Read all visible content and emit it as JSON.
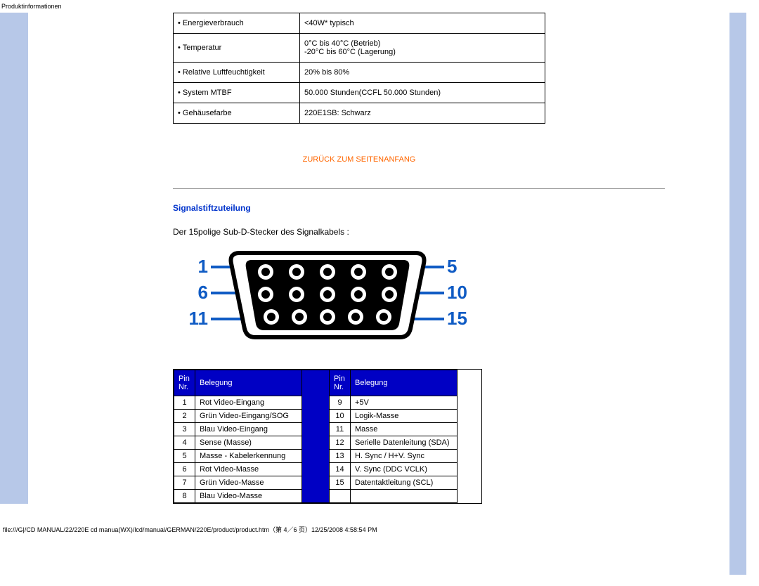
{
  "page": {
    "header_label": "Produktinformationen",
    "footer_path": "file:///G|/CD MANUAL/22/220E cd manua(WX)/lcd/manual/GERMAN/220E/product/product.htm（第 4／6 页）12/25/2008 4:58:54 PM"
  },
  "spec_table": {
    "rows": [
      {
        "label": "• Energieverbrauch",
        "value": "<40W* typisch"
      },
      {
        "label": "• Temperatur",
        "value": "0°C bis 40°C (Betrieb)\n-20°C bis 60°C (Lagerung)"
      },
      {
        "label": "• Relative Luftfeuchtigkeit",
        "value": "20% bis 80%"
      },
      {
        "label": "• System MTBF",
        "value": "50.000 Stunden(CCFL 50.000 Stunden)"
      },
      {
        "label": "• Gehäusefarbe",
        "value": "220E1SB: Schwarz"
      }
    ]
  },
  "back_link": "ZURÜCK ZUM SEITENANFANG",
  "section": {
    "heading": "Signalstiftzuteilung",
    "desc": "Der 15polige Sub-D-Stecker des Signalkabels :"
  },
  "connector": {
    "labels": {
      "l1": "1",
      "l2": "6",
      "l3": "11",
      "r1": "5",
      "r2": "10",
      "r3": "15"
    },
    "label_color": "#0f5bc4",
    "body_fill": "#000000",
    "dot_fill": "#000000",
    "border": "#000000"
  },
  "pin_table": {
    "headers": {
      "pin": "Pin Nr.",
      "assign": "Belegung"
    },
    "header_bg": "#0000c4",
    "header_fg": "#ffffff",
    "left": [
      {
        "n": "1",
        "a": "Rot Video-Eingang"
      },
      {
        "n": "2",
        "a": "Grün Video-Eingang/SOG"
      },
      {
        "n": "3",
        "a": "Blau Video-Eingang"
      },
      {
        "n": "4",
        "a": "Sense (Masse)"
      },
      {
        "n": "5",
        "a": "Masse - Kabelerkennung"
      },
      {
        "n": "6",
        "a": "Rot Video-Masse"
      },
      {
        "n": "7",
        "a": "Grün Video-Masse"
      },
      {
        "n": "8",
        "a": "Blau Video-Masse"
      }
    ],
    "right": [
      {
        "n": "9",
        "a": "+5V"
      },
      {
        "n": "10",
        "a": "Logik-Masse"
      },
      {
        "n": "11",
        "a": "Masse"
      },
      {
        "n": "12",
        "a": "Serielle Datenleitung (SDA)"
      },
      {
        "n": "13",
        "a": "H. Sync / H+V. Sync"
      },
      {
        "n": "14",
        "a": "V. Sync (DDC VCLK)"
      },
      {
        "n": "15",
        "a": "Datentaktleitung (SCL)"
      }
    ]
  }
}
